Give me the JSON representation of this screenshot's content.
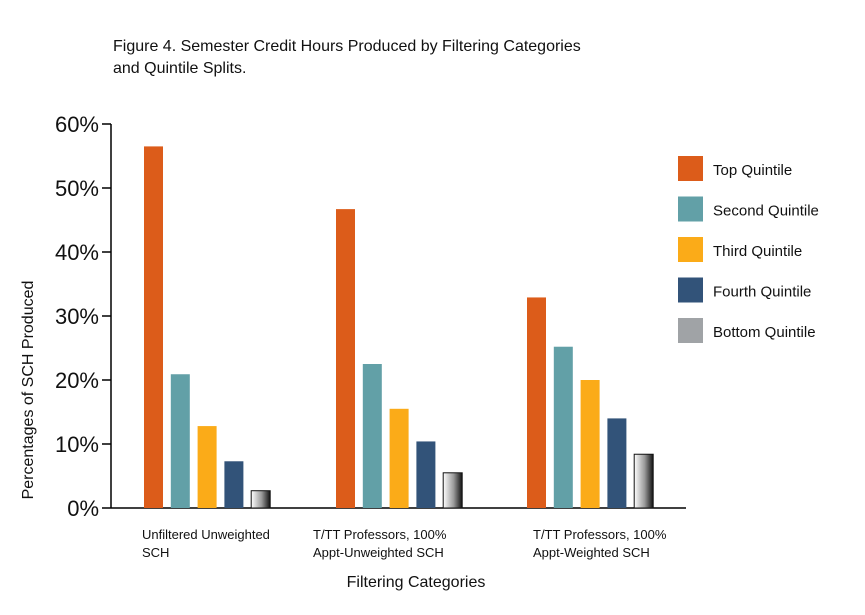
{
  "chart_data": {
    "type": "bar",
    "title": "Figure 4. Semester Credit Hours Produced by Filtering Categories and Quintile Splits.",
    "xlabel": "Filtering Categories",
    "ylabel": "Percentages of SCH Produced",
    "ylim": [
      0,
      60
    ],
    "yticks": [
      0,
      10,
      20,
      30,
      40,
      50,
      60
    ],
    "ytick_labels": [
      "0%",
      "10%",
      "20%",
      "30%",
      "40%",
      "50%",
      "60%"
    ],
    "categories": [
      [
        "Unfiltered Unweighted",
        "SCH"
      ],
      [
        "T/TT Professors, 100%",
        "Appt-Unweighted SCH"
      ],
      [
        "T/TT Professors, 100%",
        "Appt-Weighted SCH"
      ]
    ],
    "series": [
      {
        "name": "Top Quintile",
        "color": "#dc5c1a",
        "values": [
          56.5,
          46.7,
          32.9
        ]
      },
      {
        "name": "Second Quintile",
        "color": "#62a0a7",
        "values": [
          20.9,
          22.5,
          25.2
        ]
      },
      {
        "name": "Third Quintile",
        "color": "#fbab18",
        "values": [
          12.8,
          15.5,
          20.0
        ]
      },
      {
        "name": "Fourth Quintile",
        "color": "#325379",
        "values": [
          7.3,
          10.4,
          14.0
        ]
      },
      {
        "name": "Bottom Quintile",
        "color": "#a0a3a6",
        "values": [
          2.7,
          5.5,
          8.4
        ]
      }
    ],
    "legend": "right"
  }
}
